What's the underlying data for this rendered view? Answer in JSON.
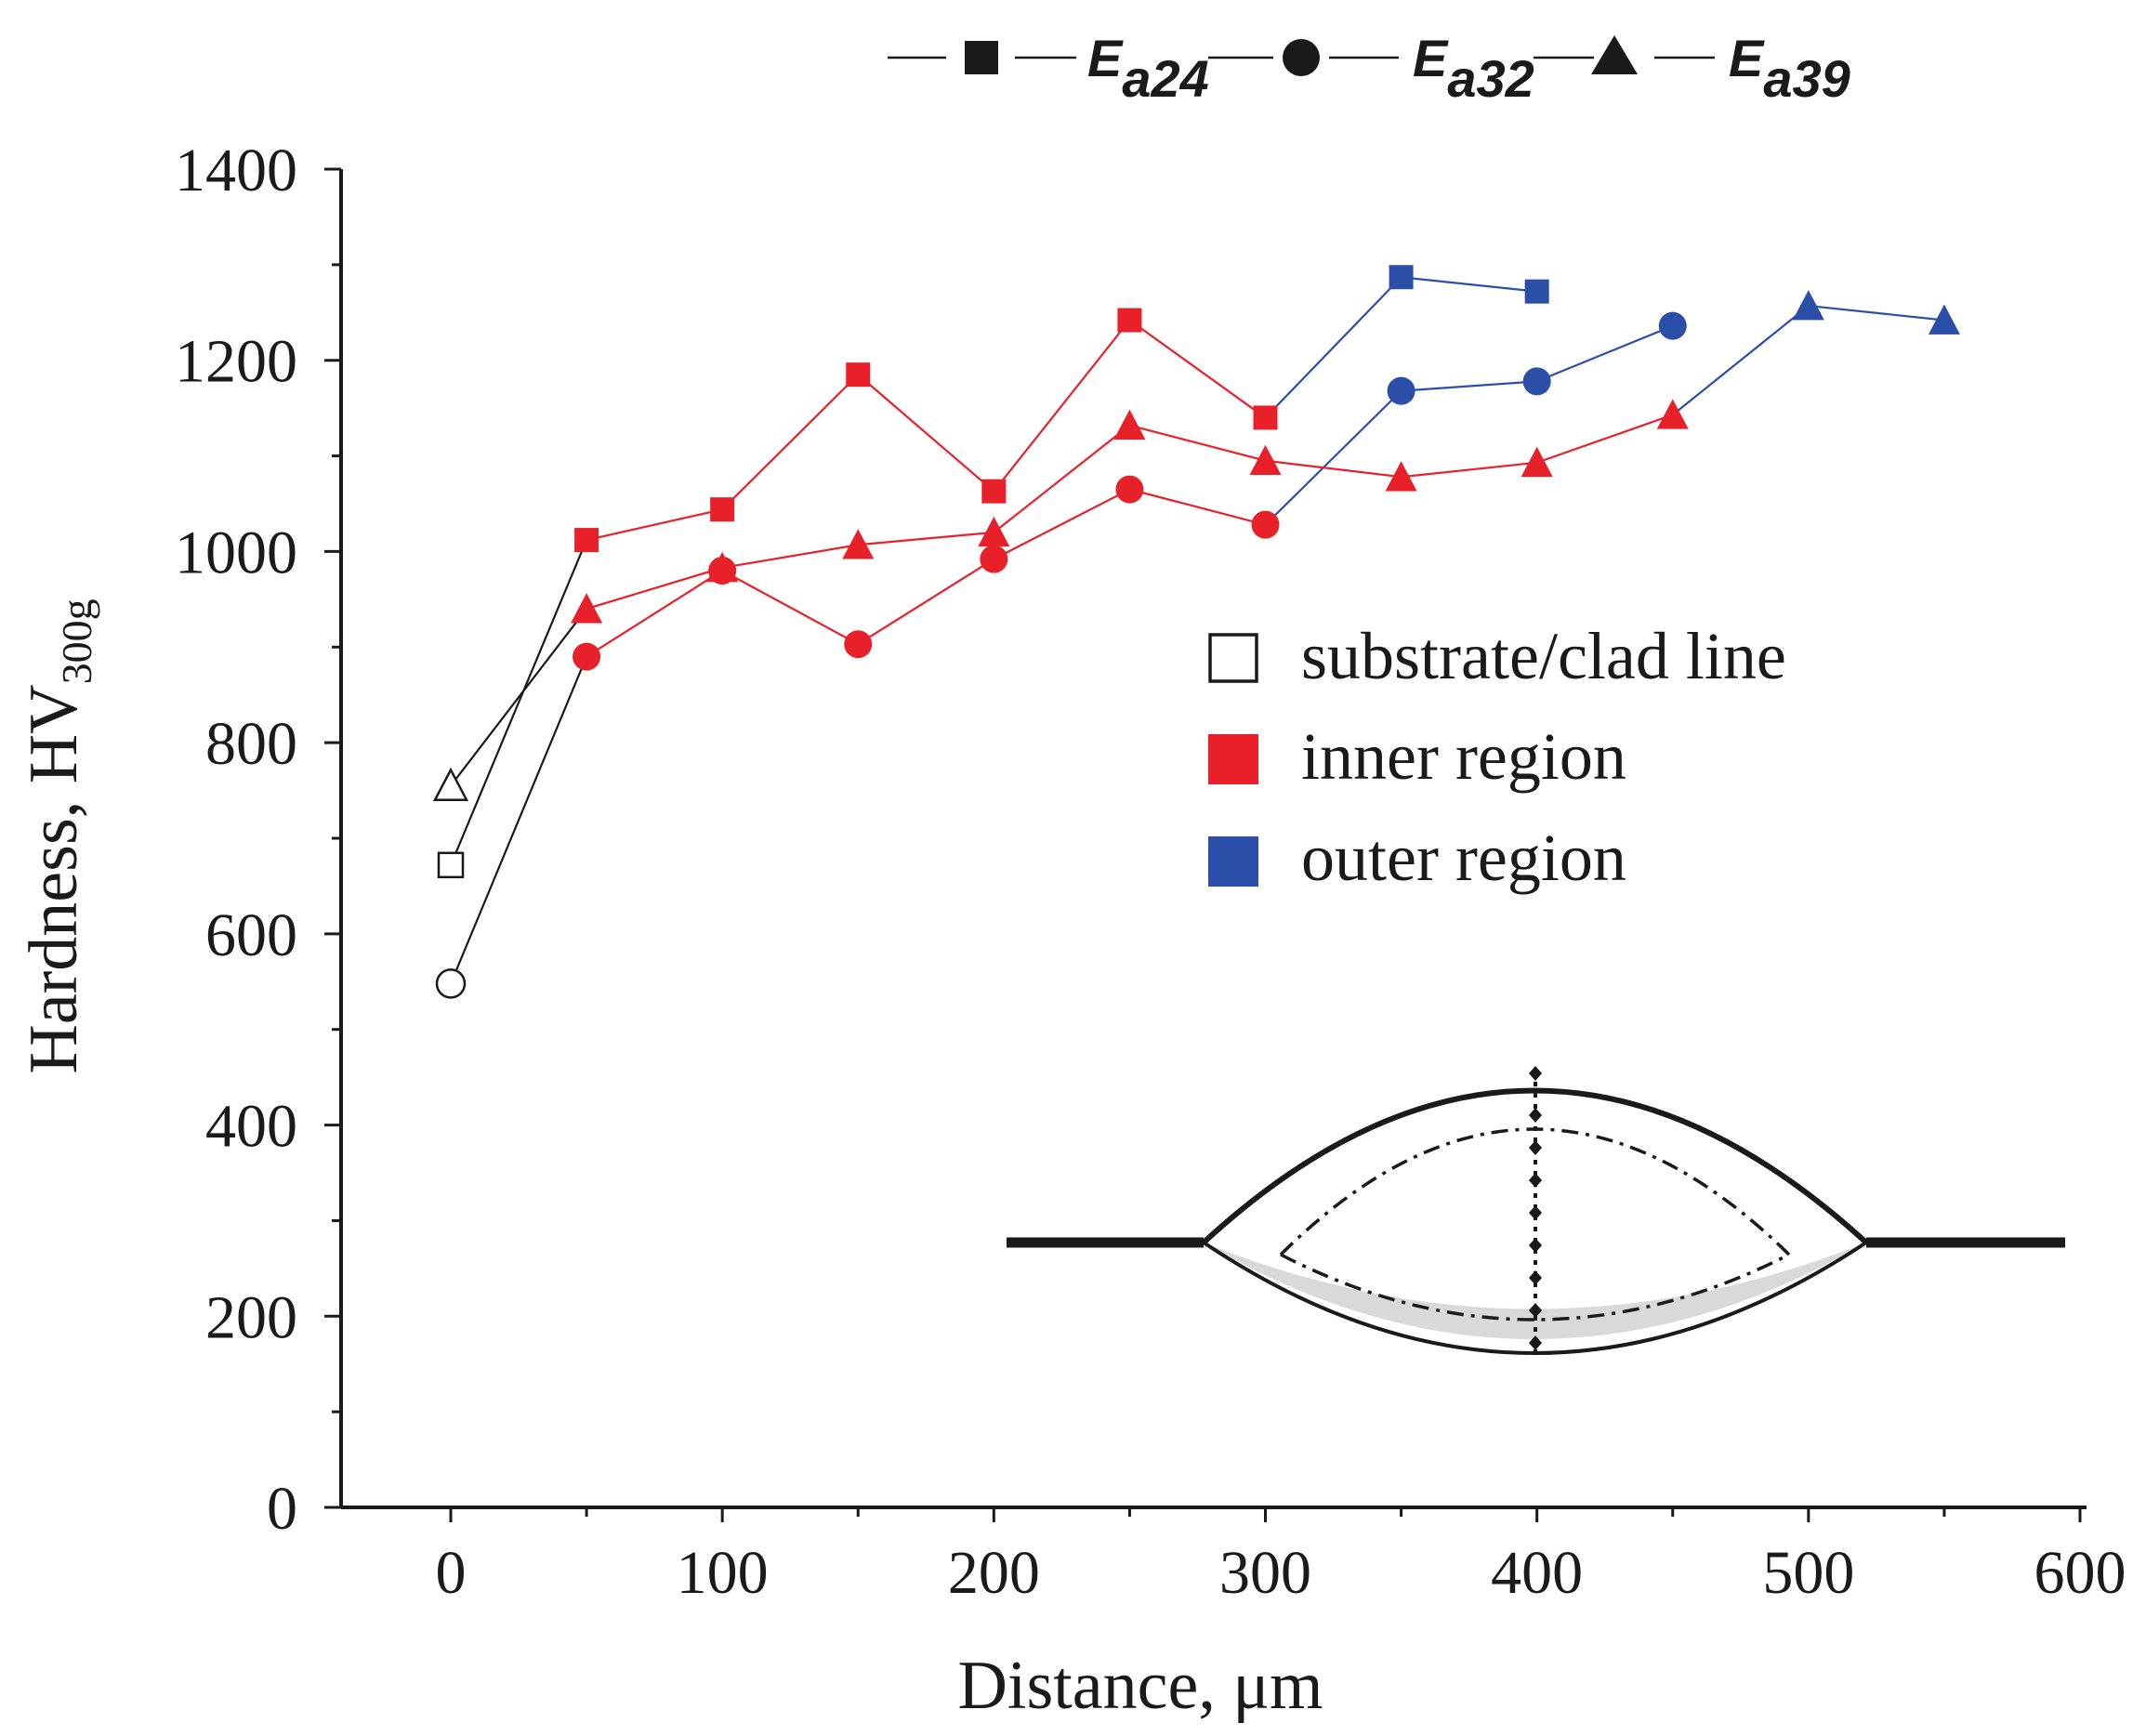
{
  "chart_data": {
    "type": "line",
    "xlabel": "Distance, μm",
    "ylabel": {
      "main": "Hardness, HV",
      "subscript": "300g"
    },
    "xlim": [
      -10,
      600
    ],
    "ylim": [
      0,
      1400
    ],
    "xticks": [
      0,
      100,
      200,
      300,
      400,
      500,
      600
    ],
    "yticks": [
      0,
      200,
      400,
      600,
      800,
      1000,
      1200,
      1400
    ],
    "grid": false,
    "colors": {
      "substrate": "#ffffff",
      "inner": "#e8202a",
      "outer": "#2b4ea8",
      "connector": "#1a1a1a"
    },
    "series": [
      {
        "name": "E_a24",
        "label_main": "E",
        "label_sub": "a24",
        "marker": "square",
        "points": [
          {
            "x": 0,
            "y": 672,
            "region": "substrate"
          },
          {
            "x": 50,
            "y": 1012,
            "region": "inner"
          },
          {
            "x": 100,
            "y": 1044,
            "region": "inner"
          },
          {
            "x": 150,
            "y": 1185,
            "region": "inner"
          },
          {
            "x": 200,
            "y": 1063,
            "region": "inner"
          },
          {
            "x": 250,
            "y": 1242,
            "region": "inner"
          },
          {
            "x": 300,
            "y": 1140,
            "region": "inner"
          },
          {
            "x": 350,
            "y": 1287,
            "region": "outer"
          },
          {
            "x": 400,
            "y": 1272,
            "region": "outer"
          }
        ]
      },
      {
        "name": "E_a32",
        "label_main": "E",
        "label_sub": "a32",
        "marker": "circle",
        "points": [
          {
            "x": 0,
            "y": 548,
            "region": "substrate"
          },
          {
            "x": 50,
            "y": 890,
            "region": "inner"
          },
          {
            "x": 100,
            "y": 980,
            "region": "inner"
          },
          {
            "x": 150,
            "y": 903,
            "region": "inner"
          },
          {
            "x": 200,
            "y": 992,
            "region": "inner"
          },
          {
            "x": 250,
            "y": 1065,
            "region": "inner"
          },
          {
            "x": 300,
            "y": 1028,
            "region": "inner"
          },
          {
            "x": 350,
            "y": 1168,
            "region": "outer"
          },
          {
            "x": 400,
            "y": 1178,
            "region": "outer"
          },
          {
            "x": 450,
            "y": 1236,
            "region": "outer"
          }
        ]
      },
      {
        "name": "E_a39",
        "label_main": "E",
        "label_sub": "a39",
        "marker": "triangle",
        "points": [
          {
            "x": 0,
            "y": 755,
            "region": "substrate"
          },
          {
            "x": 50,
            "y": 940,
            "region": "inner"
          },
          {
            "x": 100,
            "y": 983,
            "region": "inner"
          },
          {
            "x": 150,
            "y": 1007,
            "region": "inner"
          },
          {
            "x": 200,
            "y": 1020,
            "region": "inner"
          },
          {
            "x": 250,
            "y": 1132,
            "region": "inner"
          },
          {
            "x": 300,
            "y": 1095,
            "region": "inner"
          },
          {
            "x": 350,
            "y": 1078,
            "region": "inner"
          },
          {
            "x": 400,
            "y": 1093,
            "region": "inner"
          },
          {
            "x": 450,
            "y": 1143,
            "region": "inner"
          },
          {
            "x": 500,
            "y": 1257,
            "region": "outer"
          },
          {
            "x": 550,
            "y": 1242,
            "region": "outer"
          }
        ]
      }
    ],
    "region_legend": [
      {
        "key": "substrate",
        "label": "substrate/clad line"
      },
      {
        "key": "inner",
        "label": "inner region"
      },
      {
        "key": "outer",
        "label": "outer region"
      }
    ],
    "inset": "clad bead cross-section schematic with vertical line of indentation points"
  }
}
